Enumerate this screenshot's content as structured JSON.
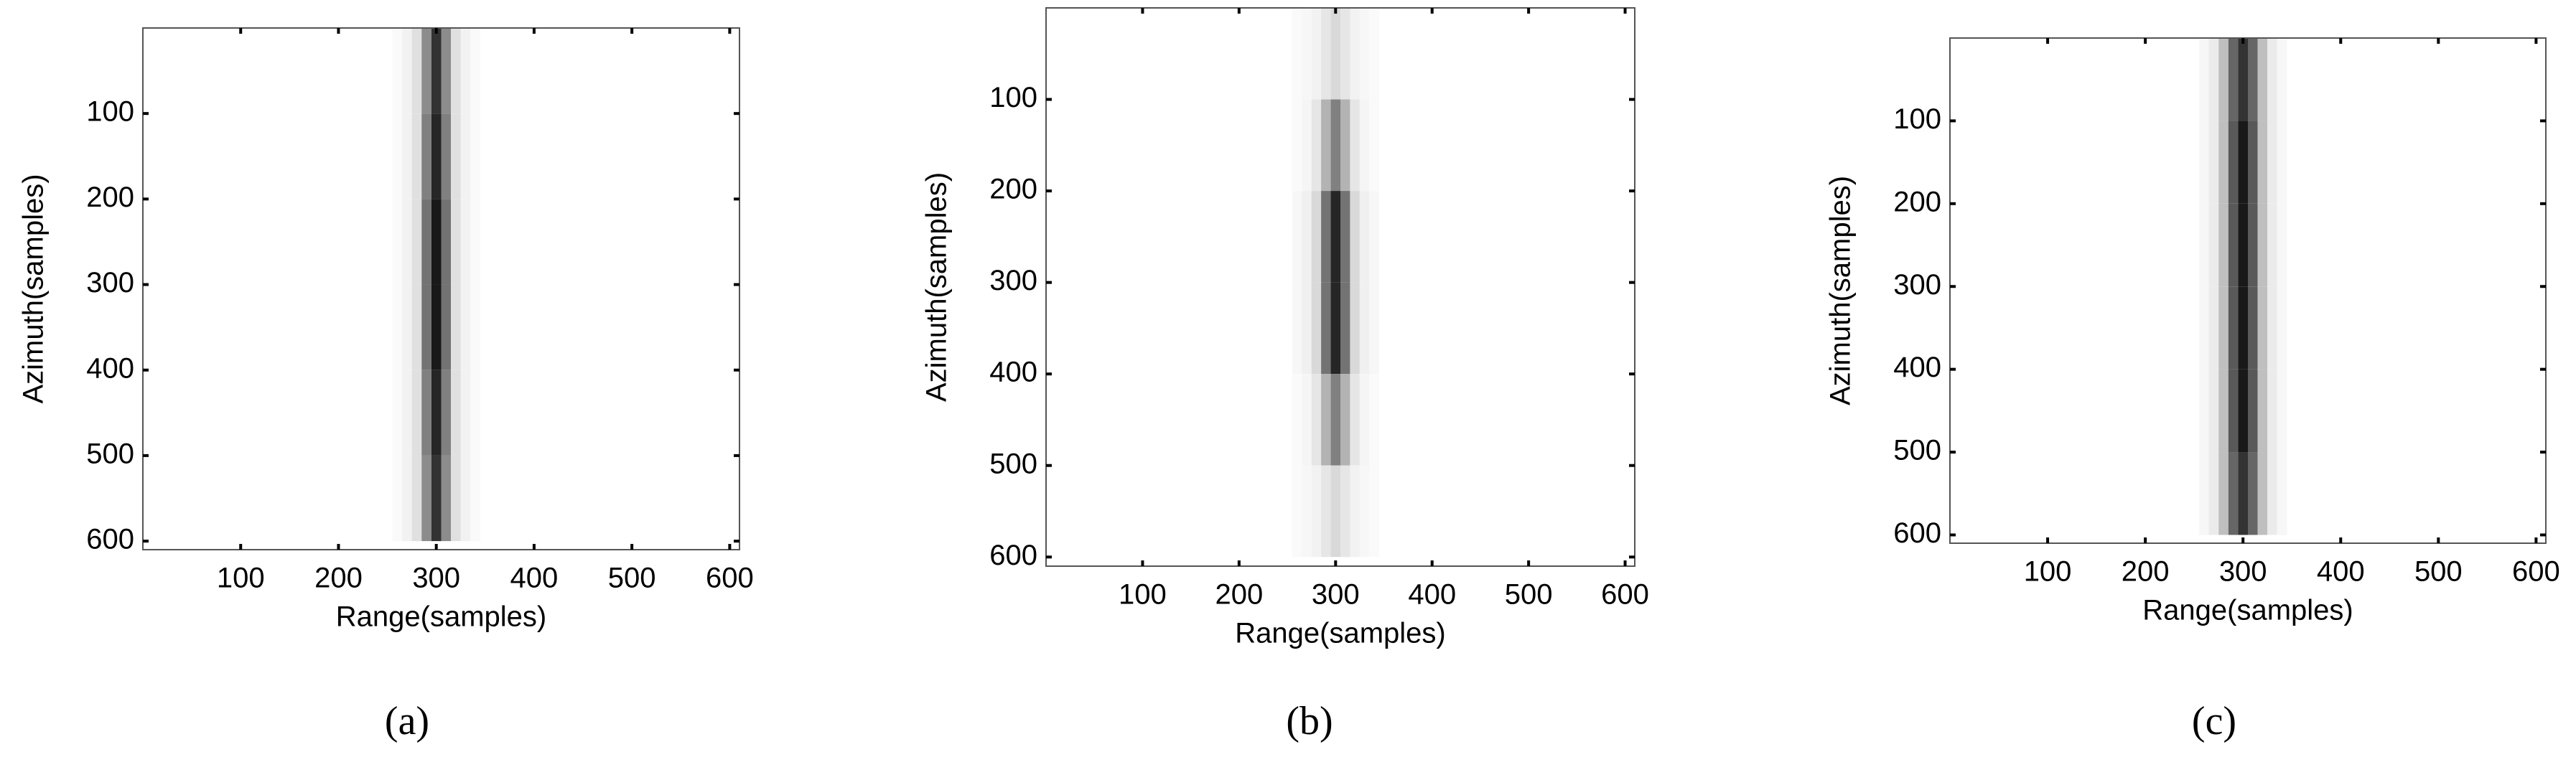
{
  "chart_data": [
    {
      "type": "heatmap",
      "caption": "(a)",
      "xlabel": "Range(samples)",
      "ylabel": "Azimuth(samples)",
      "xlim": [
        0,
        610
      ],
      "ylim": [
        0,
        610
      ],
      "y_reversed": true,
      "colormap": "gray_r",
      "xticks": [
        100,
        200,
        300,
        400,
        500,
        600
      ],
      "yticks": [
        100,
        200,
        300,
        400,
        500,
        600
      ],
      "x": [
        260,
        270,
        280,
        290,
        300,
        310,
        320,
        330,
        340
      ],
      "y": [
        50,
        150,
        250,
        350,
        450,
        550
      ],
      "z": [
        [
          0.02,
          0.05,
          0.12,
          0.45,
          0.8,
          0.45,
          0.12,
          0.05,
          0.02
        ],
        [
          0.02,
          0.05,
          0.12,
          0.5,
          0.85,
          0.5,
          0.12,
          0.05,
          0.02
        ],
        [
          0.02,
          0.05,
          0.12,
          0.55,
          0.9,
          0.55,
          0.12,
          0.05,
          0.02
        ],
        [
          0.02,
          0.05,
          0.12,
          0.55,
          0.9,
          0.55,
          0.12,
          0.05,
          0.02
        ],
        [
          0.02,
          0.05,
          0.12,
          0.5,
          0.85,
          0.5,
          0.12,
          0.05,
          0.02
        ],
        [
          0.02,
          0.05,
          0.12,
          0.45,
          0.8,
          0.45,
          0.12,
          0.05,
          0.02
        ]
      ]
    },
    {
      "type": "heatmap",
      "caption": "(b)",
      "xlabel": "Range(samples)",
      "ylabel": "Azimuth(samples)",
      "xlim": [
        0,
        610
      ],
      "ylim": [
        0,
        610
      ],
      "y_reversed": true,
      "colormap": "gray_r",
      "xticks": [
        100,
        200,
        300,
        400,
        500,
        600
      ],
      "yticks": [
        100,
        200,
        300,
        400,
        500,
        600
      ],
      "x": [
        260,
        270,
        280,
        290,
        300,
        310,
        320,
        330,
        340
      ],
      "y": [
        50,
        150,
        250,
        350,
        450,
        550
      ],
      "z": [
        [
          0.02,
          0.03,
          0.05,
          0.1,
          0.15,
          0.1,
          0.05,
          0.03,
          0.02
        ],
        [
          0.02,
          0.04,
          0.1,
          0.3,
          0.5,
          0.3,
          0.1,
          0.04,
          0.02
        ],
        [
          0.03,
          0.06,
          0.15,
          0.55,
          0.85,
          0.55,
          0.15,
          0.06,
          0.03
        ],
        [
          0.03,
          0.06,
          0.15,
          0.55,
          0.85,
          0.55,
          0.15,
          0.06,
          0.03
        ],
        [
          0.02,
          0.04,
          0.1,
          0.3,
          0.5,
          0.3,
          0.1,
          0.04,
          0.02
        ],
        [
          0.02,
          0.03,
          0.05,
          0.1,
          0.15,
          0.1,
          0.05,
          0.03,
          0.02
        ]
      ]
    },
    {
      "type": "heatmap",
      "caption": "(c)",
      "xlabel": "Range(samples)",
      "ylabel": "Azimuth(samples)",
      "xlim": [
        0,
        610
      ],
      "ylim": [
        0,
        610
      ],
      "y_reversed": true,
      "colormap": "gray_r",
      "xticks": [
        100,
        200,
        300,
        400,
        500,
        600
      ],
      "yticks": [
        100,
        200,
        300,
        400,
        500,
        600
      ],
      "x": [
        260,
        270,
        280,
        290,
        300,
        310,
        320,
        330,
        340
      ],
      "y": [
        50,
        150,
        250,
        350,
        450,
        550
      ],
      "z": [
        [
          0.03,
          0.08,
          0.25,
          0.6,
          0.8,
          0.6,
          0.25,
          0.08,
          0.03
        ],
        [
          0.03,
          0.08,
          0.25,
          0.65,
          0.9,
          0.65,
          0.25,
          0.08,
          0.03
        ],
        [
          0.03,
          0.08,
          0.25,
          0.65,
          0.9,
          0.65,
          0.25,
          0.08,
          0.03
        ],
        [
          0.03,
          0.08,
          0.25,
          0.65,
          0.9,
          0.65,
          0.25,
          0.08,
          0.03
        ],
        [
          0.03,
          0.08,
          0.25,
          0.65,
          0.9,
          0.65,
          0.25,
          0.08,
          0.03
        ],
        [
          0.03,
          0.08,
          0.25,
          0.6,
          0.8,
          0.6,
          0.25,
          0.08,
          0.03
        ]
      ]
    }
  ]
}
